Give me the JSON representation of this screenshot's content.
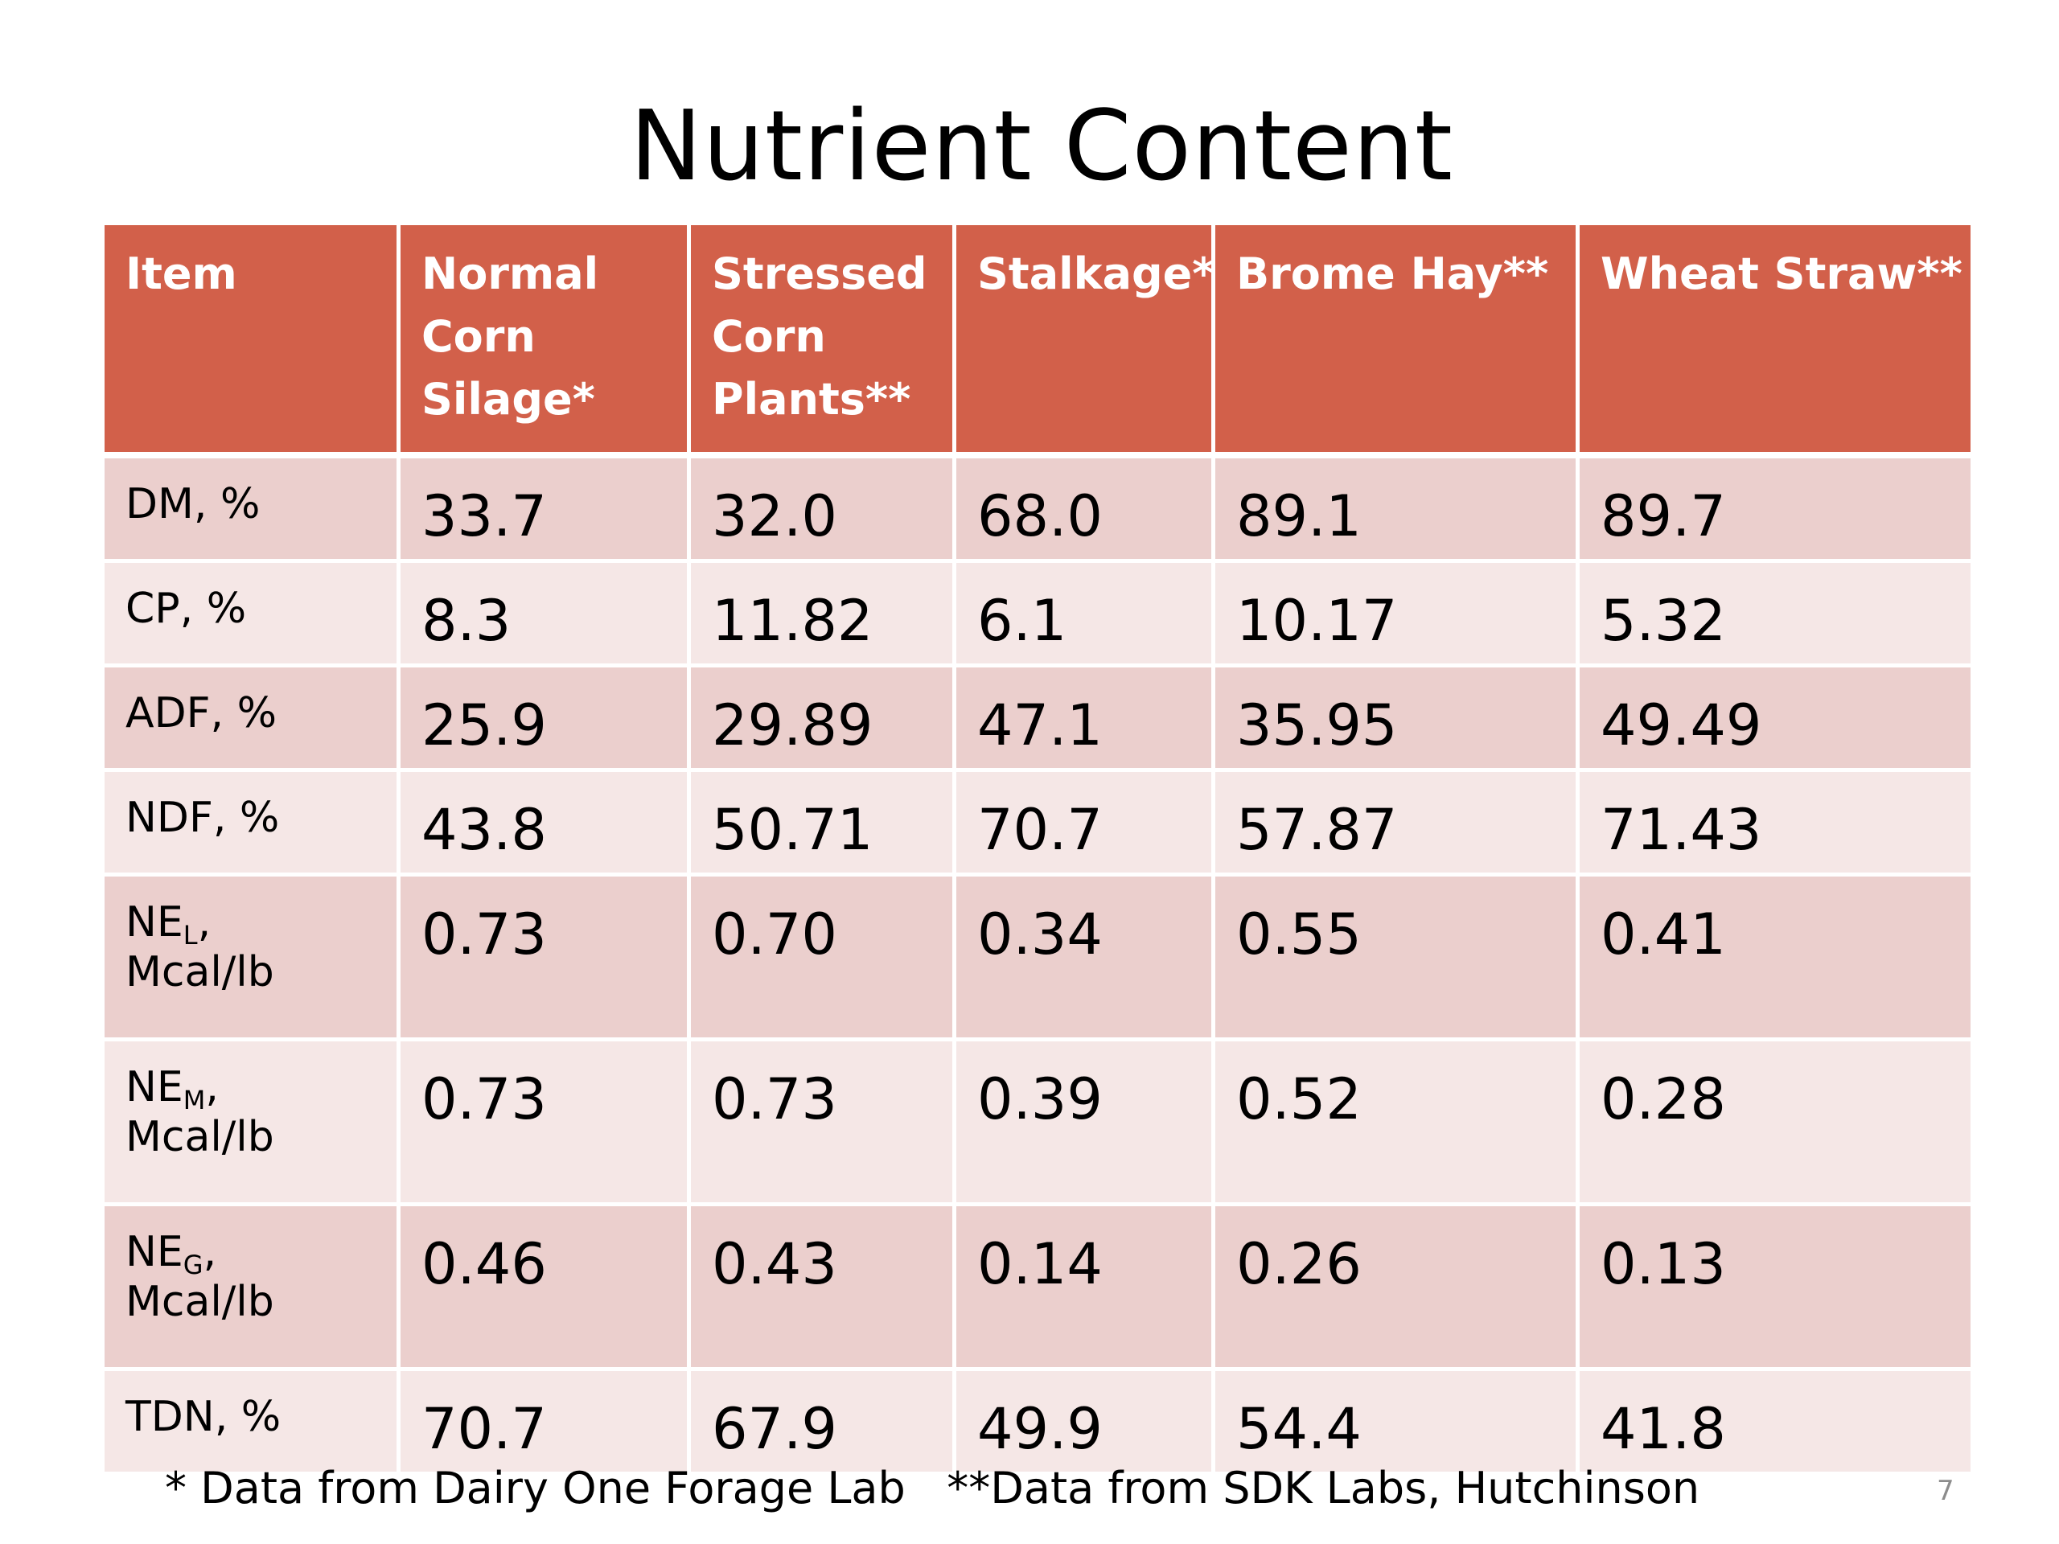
{
  "slide": {
    "title": "Nutrient Content",
    "footnote": "* Data from Dairy One Forage Lab   **Data from SDK Labs, Hutchinson",
    "page_number": "7"
  },
  "table": {
    "headers": [
      "Item",
      "Normal Corn Silage*",
      "Stressed Corn Plants**",
      "Stalkage*",
      "Brome Hay**",
      "Wheat Straw**"
    ],
    "rows": [
      {
        "item": "DM, %",
        "values": [
          "33.7",
          "32.0",
          "68.0",
          "89.1",
          "89.7"
        ]
      },
      {
        "item": "CP, %",
        "values": [
          "8.3",
          "11.82",
          "6.1",
          "10.17",
          "5.32"
        ]
      },
      {
        "item": "ADF, %",
        "values": [
          "25.9",
          "29.89",
          "47.1",
          "35.95",
          "49.49"
        ]
      },
      {
        "item": "NDF, %",
        "values": [
          "43.8",
          "50.71",
          "70.7",
          "57.87",
          "71.43"
        ]
      },
      {
        "item_main": "NE",
        "item_sub": "L",
        "item_rest": ",",
        "item_line2": "Mcal/lb",
        "values": [
          "0.73",
          "0.70",
          "0.34",
          "0.55",
          "0.41"
        ]
      },
      {
        "item_main": "NE",
        "item_sub": "M",
        "item_rest": ",",
        "item_line2": "Mcal/lb",
        "values": [
          "0.73",
          "0.73",
          "0.39",
          "0.52",
          "0.28"
        ]
      },
      {
        "item_main": "NE",
        "item_sub": "G",
        "item_rest": ",",
        "item_line2": "Mcal/lb",
        "values": [
          "0.46",
          "0.43",
          "0.14",
          "0.26",
          "0.13"
        ]
      },
      {
        "item": "TDN, %",
        "values": [
          "70.7",
          "67.9",
          "49.9",
          "54.4",
          "41.8"
        ]
      }
    ]
  },
  "colors": {
    "header_background": "#d2604a",
    "row_odd_background": "#ebcfcd",
    "row_even_background": "#f5e7e6",
    "header_text": "#ffffff",
    "body_text": "#000000",
    "page_number_text": "#8c8c8c"
  }
}
